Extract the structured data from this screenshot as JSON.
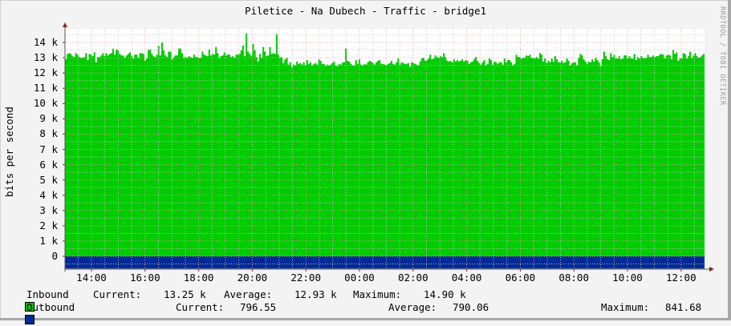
{
  "chart_data": {
    "type": "area",
    "title": "Piletice - Na Dubech - Traffic - bridge1",
    "xlabel": "",
    "ylabel": "bits per second",
    "watermark": "RRDTOOL / TOBI OETIKER",
    "ylim": [
      -850,
      15000
    ],
    "grid": true,
    "legend_position": "bottom",
    "y_ticks": [
      "14 k",
      "13 k",
      "12 k",
      "11 k",
      "10 k",
      "9 k",
      "8 k",
      "7 k",
      "6 k",
      "5 k",
      "4 k",
      "3 k",
      "2 k",
      "1 k",
      "0"
    ],
    "y_tick_values": [
      14000,
      13000,
      12000,
      11000,
      10000,
      9000,
      8000,
      7000,
      6000,
      5000,
      4000,
      3000,
      2000,
      1000,
      0
    ],
    "x_ticks": [
      "14:00",
      "16:00",
      "18:00",
      "20:00",
      "22:00",
      "00:00",
      "02:00",
      "04:00",
      "06:00",
      "08:00",
      "10:00",
      "12:00"
    ],
    "x_start": "13:00",
    "x_end": "12:55",
    "colors": {
      "inbound": "#00cc00",
      "outbound": "#002a97",
      "grid_major": "#e8a0a0",
      "grid_minor": "#c8c8c8",
      "axis": "#555555",
      "arrow": "#902020"
    },
    "series": [
      {
        "name": "Inbound",
        "current": "13.25 k",
        "average": "12.93 k",
        "maximum": "14.90 k",
        "values": [
          12900,
          13250,
          13300,
          13250,
          13100,
          13050,
          13300,
          13200,
          13050,
          13000,
          13000,
          13050,
          13300,
          12850,
          13250,
          13200,
          13100,
          13350,
          12700,
          13050,
          13050,
          13150,
          13300,
          13100,
          13300,
          13150,
          13250,
          13300,
          13600,
          13200,
          13550,
          13500,
          13250,
          13150,
          13150,
          13000,
          13150,
          13250,
          13350,
          13100,
          12950,
          13200,
          13200,
          13000,
          13300,
          13300,
          13250,
          12800,
          12950,
          13500,
          13550,
          13250,
          13100,
          13050,
          13200,
          13800,
          13150,
          14000,
          13500,
          13150,
          13050,
          13400,
          13400,
          12900,
          13050,
          13150,
          13150,
          13600,
          13600,
          13300,
          13000,
          13050,
          13000,
          13100,
          13050,
          13000,
          13200,
          13050,
          13050,
          13000,
          13000,
          13400,
          13200,
          13150,
          13100,
          13550,
          13150,
          13250,
          13200,
          13700,
          13300,
          13000,
          13100,
          13150,
          13350,
          13150,
          13200,
          13200,
          13050,
          13100,
          13000,
          13200,
          13200,
          13250,
          13500,
          13800,
          13100,
          14600,
          13400,
          13250,
          13100,
          13900,
          13500,
          13050,
          12750,
          13250,
          13000,
          13700,
          13400,
          13100,
          13150,
          13700,
          13250,
          13300,
          13250,
          14550,
          13200,
          13000,
          13050,
          12650,
          12900,
          13000,
          12550,
          12700,
          12400,
          12550,
          12500,
          12750,
          12600,
          12650,
          12550,
          12700,
          12500,
          12850,
          12600,
          12700,
          12500,
          12600,
          12650,
          12550,
          12900,
          12800,
          12600,
          12600,
          12450,
          12550,
          12500,
          12550,
          12650,
          12750,
          12500,
          12450,
          12600,
          12550,
          12700,
          12700,
          13600,
          12800,
          12750,
          12600,
          12500,
          12500,
          12850,
          12600,
          12900,
          12550,
          12500,
          12600,
          12550,
          12700,
          12800,
          12750,
          12650,
          12550,
          12700,
          12800,
          12850,
          12600,
          12600,
          12550,
          12500,
          12600,
          12650,
          12800,
          12600,
          12550,
          12700,
          12950,
          12550,
          12700,
          12650,
          12600,
          12600,
          12650,
          12400,
          12700,
          12650,
          12600,
          12550,
          12500,
          12750,
          12950,
          13000,
          12800,
          12850,
          12950,
          13200,
          12900,
          12950,
          13150,
          13050,
          13000,
          13100,
          13050,
          13300,
          13050,
          12800,
          12750,
          12800,
          12700,
          12900,
          12750,
          12850,
          12750,
          12800,
          12900,
          12750,
          12850,
          12800,
          12600,
          12700,
          12750,
          12900,
          13050,
          12800,
          12650,
          12550,
          12700,
          12850,
          12500,
          12600,
          12950,
          12850,
          12550,
          12750,
          12700,
          12600,
          12700,
          12700,
          12550,
          12950,
          12700,
          12850,
          12850,
          12700,
          12500,
          12600,
          13200,
          13050,
          13050,
          12950,
          13000,
          13000,
          13150,
          13100,
          13200,
          13000,
          13000,
          12950,
          13050,
          12950,
          13300,
          13200,
          12750,
          12950,
          12650,
          12800,
          12700,
          12950,
          12750,
          13100,
          12900,
          12700,
          12700,
          12800,
          12650,
          12700,
          12950,
          12800,
          12500,
          12650,
          12700,
          12700,
          12500,
          13000,
          13250,
          13150,
          12900,
          12750,
          12600,
          12750,
          12700,
          12900,
          12750,
          13000,
          12850,
          12700,
          12450,
          12900,
          13400,
          13100,
          12900,
          12850,
          13300,
          13050,
          13200,
          12950,
          12950,
          13100,
          12900,
          12950,
          13150,
          13150,
          12950,
          13100,
          12950,
          12950,
          13250,
          12850,
          13050,
          12950,
          13100,
          13000,
          12950,
          13000,
          13200,
          13050,
          13050,
          13150,
          13050,
          13100,
          13100,
          13200,
          13250,
          13200,
          12950,
          13150,
          13200,
          13150,
          12900,
          13500,
          13250,
          13350,
          12800,
          12950,
          12950,
          13300,
          13250,
          12950,
          13100,
          13400,
          13000,
          13150,
          13300,
          13100,
          13000,
          13050,
          13150,
          13250
        ]
      },
      {
        "name": "Outbound",
        "current": "796.55",
        "average": "790.06",
        "maximum": "841.68",
        "value_approx": -800
      }
    ]
  },
  "legend": {
    "inbound": {
      "label": "Inbound",
      "current_label": "Current:",
      "current": "13.25 k",
      "average_label": "Average:",
      "average": "12.93 k",
      "maximum_label": "Maximum:",
      "maximum": "14.90 k"
    },
    "outbound": {
      "label": "Outbound",
      "current_label": "Current:",
      "current": "796.55",
      "average_label": "Average:",
      "average": "790.06",
      "maximum_label": "Maximum:",
      "maximum": "841.68"
    }
  }
}
